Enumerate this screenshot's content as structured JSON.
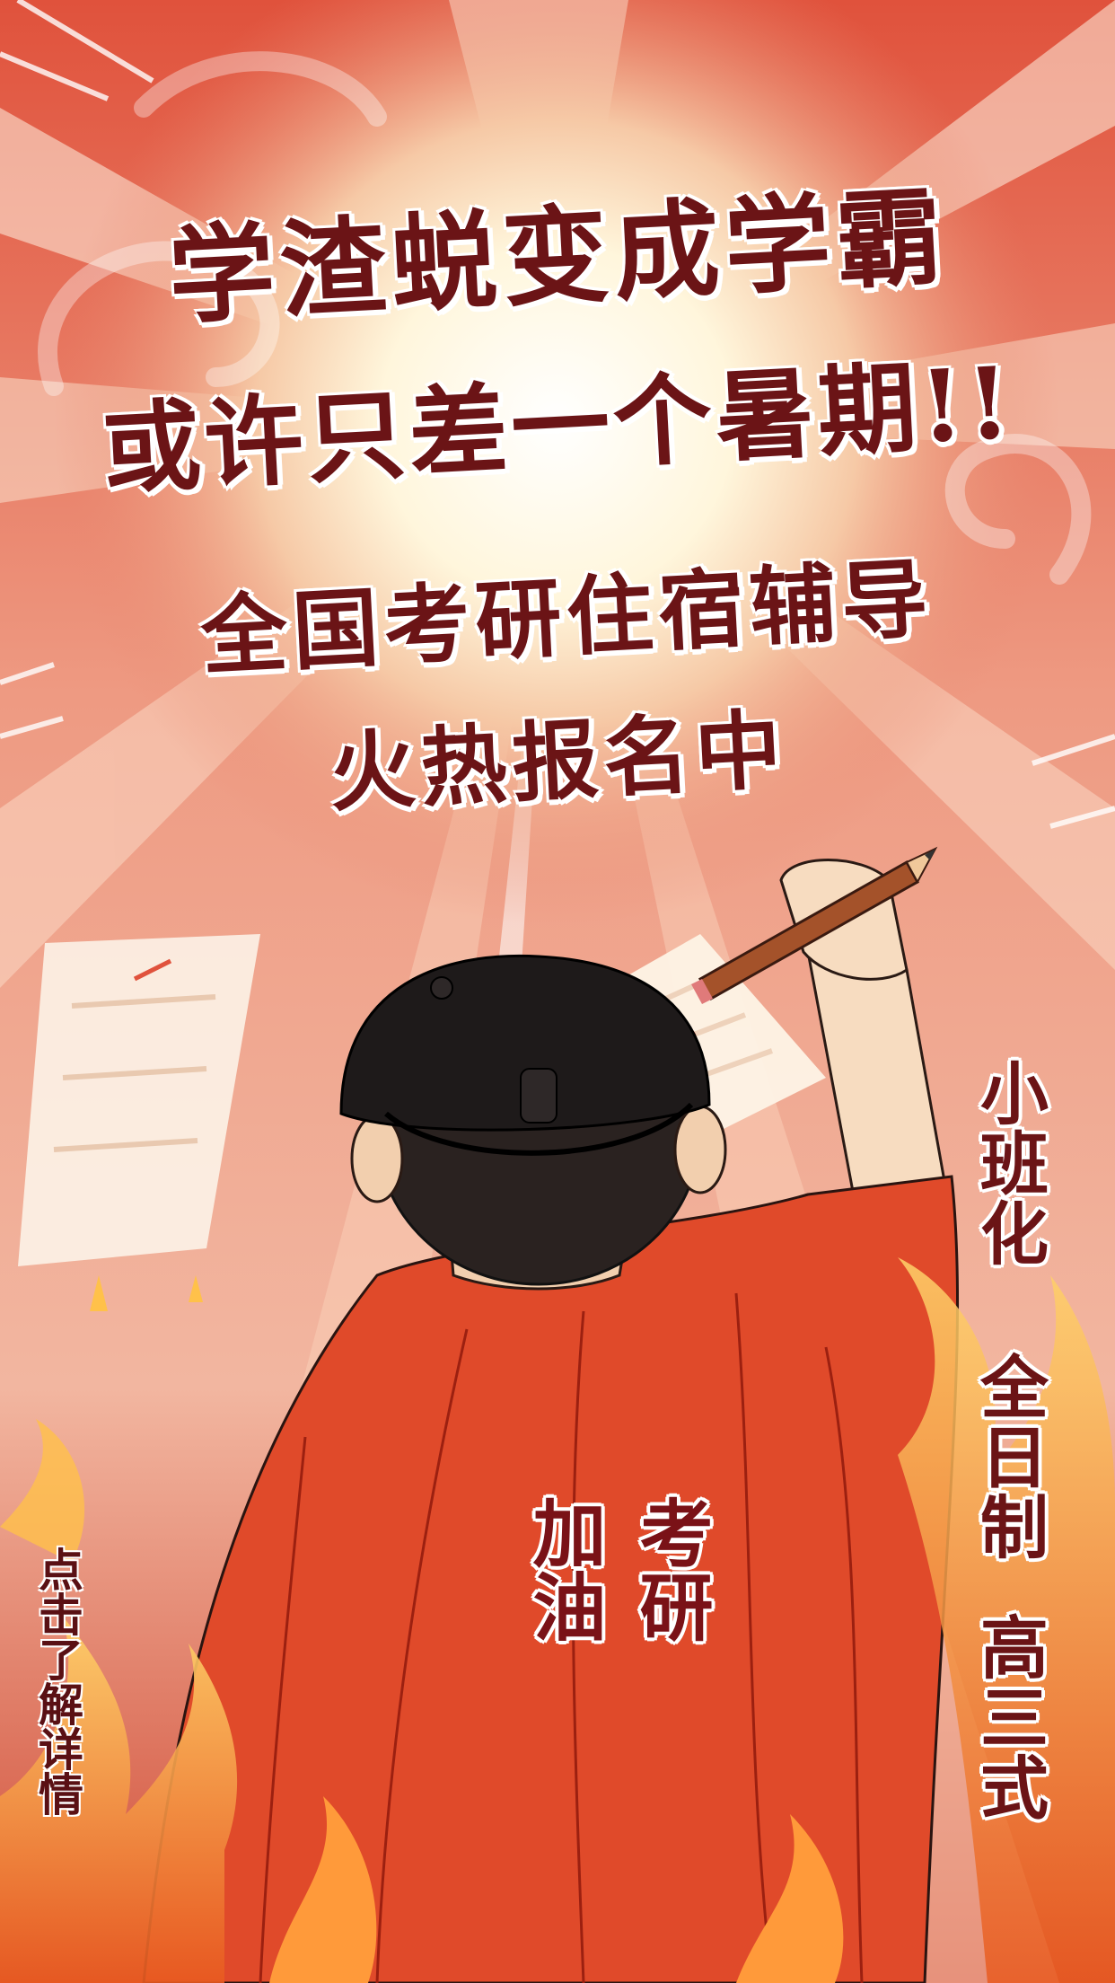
{
  "headline": {
    "line1": "学渣蜕变成学霸",
    "line2": "或许只差一个暑期!!",
    "line3": "全国考研住宿辅导",
    "line4": "火热报名中"
  },
  "tags": {
    "tag1": "小班化",
    "tag2": "全日制",
    "tag3": "高三式"
  },
  "shirt": {
    "col1": "考研",
    "col2": "加油"
  },
  "cta": {
    "label": "点击了解详情"
  },
  "colors": {
    "background": "#e8866e",
    "headline": "#6b1416",
    "shirt": "#e04a2a",
    "cap": "#1e1a1a",
    "pencil": "#a4522a"
  }
}
